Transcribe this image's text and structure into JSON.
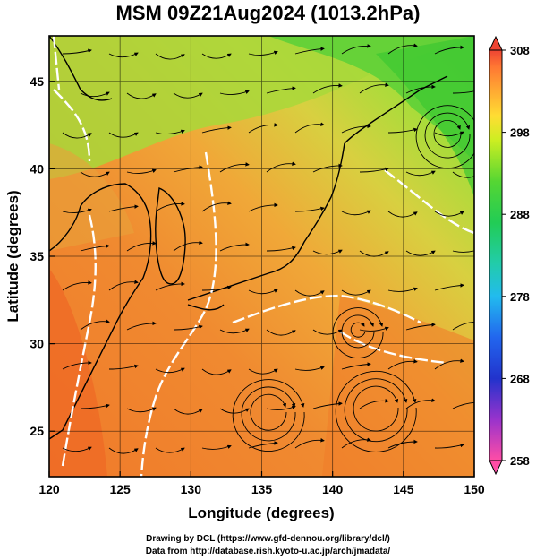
{
  "title": "MSM 09Z21Aug2024 (1013.2hPa)",
  "map": {
    "xlabel": "Longitude (degrees)",
    "ylabel": "Latitude  (degrees)",
    "lon_range": [
      120,
      150
    ],
    "lat_range": [
      22.4,
      47.6
    ],
    "x_ticks": [
      "120",
      "125",
      "130",
      "135",
      "140",
      "145",
      "150"
    ],
    "y_ticks": [
      "25",
      "30",
      "35",
      "40",
      "45"
    ],
    "field": "temperature",
    "overlay": "streamlines",
    "contour_color": "#ffffff"
  },
  "colorbar": {
    "range": [
      258,
      308
    ],
    "ticks": [
      "308",
      "298",
      "288",
      "278",
      "268",
      "258"
    ],
    "colors": [
      "#ff4da6",
      "#cc33cc",
      "#3333cc",
      "#2255ee",
      "#22aaee",
      "#22cccc",
      "#22cc88",
      "#33cc33",
      "#99e033",
      "#eeee22",
      "#ffcc33",
      "#ff9933",
      "#ff6633",
      "#ee3333"
    ]
  },
  "footer": {
    "line1": "Drawing by DCL (https://www.gfd-dennou.org/library/dcl/)",
    "line2": "Data from http://database.rish.kyoto-u.ac.jp/arch/jmadata/"
  }
}
